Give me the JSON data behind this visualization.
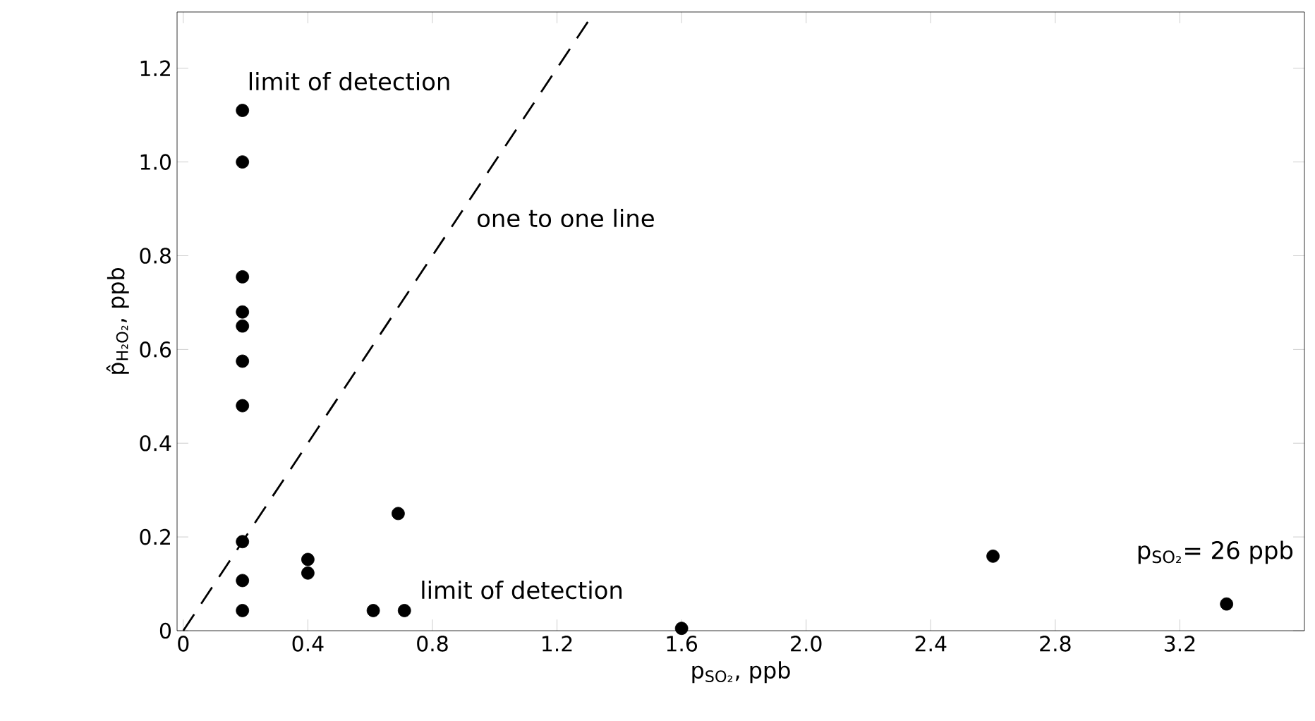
{
  "chart_data": {
    "type": "scatter",
    "xlabel": "p$_{SO₂}$, ppb",
    "ylabel": "p̂$_{H₂O₂}$, ppb",
    "xlim": [
      -0.02,
      3.6
    ],
    "ylim": [
      0,
      1.32
    ],
    "xticks": [
      0,
      0.4,
      0.8,
      1.2,
      1.6,
      {
        "value": 2,
        "label": "2.0"
      },
      2.4,
      2.8,
      3.2
    ],
    "yticks": [
      0,
      0.2,
      0.4,
      0.6,
      0.8,
      {
        "value": 1,
        "label": "1.0"
      },
      1.2
    ],
    "grid": false,
    "series": [
      {
        "color": "#000000",
        "marker": "circle",
        "x": [
          0.19,
          0.19,
          0.19,
          0.19,
          0.19,
          0.19,
          0.19,
          0.19,
          0.19,
          0.19,
          0.4,
          0.4,
          0.69,
          0.61,
          0.71,
          1.6,
          2.6,
          3.35
        ],
        "values": [
          1.11,
          1.0,
          0.755,
          0.68,
          0.65,
          0.575,
          0.48,
          0.19,
          0.107,
          0.043,
          0.152,
          0.123,
          0.25,
          0.043,
          0.043,
          0.005,
          0.159,
          0.057
        ]
      },
      {
        "type": "line",
        "color": "#000000",
        "line_style": "dashed",
        "marker": "none",
        "x": [
          0,
          1.3
        ],
        "values": [
          0,
          1.3
        ]
      }
    ],
    "annotations": [
      "limit of detection",
      "one to one line",
      "limit of detection",
      "p$_{SO₂}$= 26 ppb"
    ]
  }
}
